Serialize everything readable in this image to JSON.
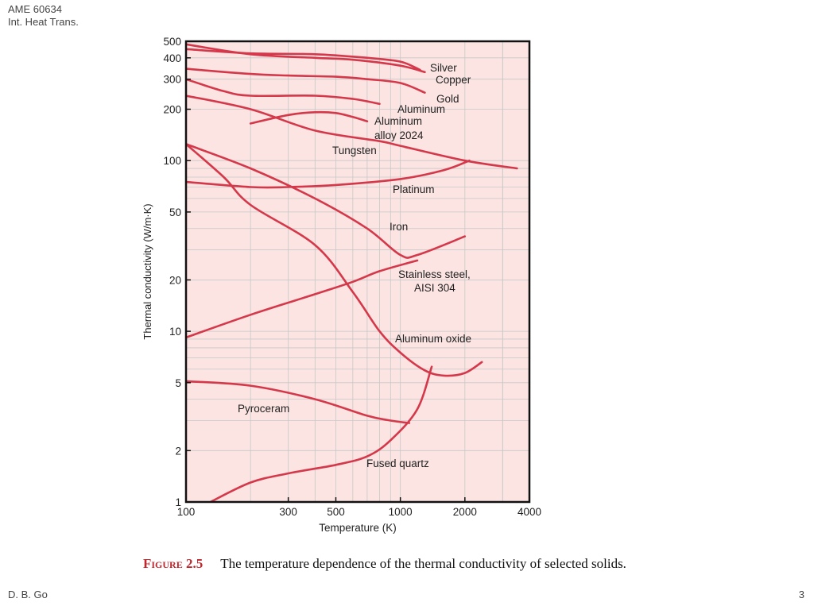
{
  "slide": {
    "header_line1": "AME 60634",
    "header_line2": "Int. Heat Trans.",
    "footer_left": "D. B. Go",
    "page_number": "3"
  },
  "caption": {
    "figure_label": "Figure 2.5",
    "text": "The temperature dependence of the thermal conductivity of selected solids."
  },
  "colors": {
    "plot_background": "#fbe4e1",
    "curve": "#d4384a",
    "grid": "#c8c8c8",
    "caption_label": "#c0262e"
  },
  "chart_data": {
    "type": "line",
    "title": "",
    "xlabel": "Temperature (K)",
    "ylabel": "Thermal conductivity (W/m·K)",
    "x_scale": "log",
    "y_scale": "log",
    "xlim": [
      100,
      4000
    ],
    "ylim": [
      1,
      500
    ],
    "x_ticks": [
      100,
      300,
      500,
      1000,
      2000,
      4000
    ],
    "x_tick_labels": [
      "100",
      "300",
      "500",
      "1000",
      "2000",
      "4000"
    ],
    "y_ticks": [
      1,
      2,
      5,
      10,
      20,
      50,
      100,
      200,
      300,
      400,
      500
    ],
    "y_tick_labels": [
      "1",
      "2",
      "5",
      "10",
      "20",
      "50",
      "100",
      "200",
      "300",
      "400",
      "500"
    ],
    "grid": true,
    "legend": "none",
    "series": [
      {
        "name": "Silver",
        "points": [
          [
            100,
            450
          ],
          [
            200,
            425
          ],
          [
            400,
            420
          ],
          [
            700,
            400
          ],
          [
            1000,
            380
          ],
          [
            1235,
            340
          ]
        ]
      },
      {
        "name": "Copper",
        "points": [
          [
            100,
            480
          ],
          [
            200,
            420
          ],
          [
            400,
            400
          ],
          [
            600,
            390
          ],
          [
            1000,
            360
          ],
          [
            1300,
            330
          ]
        ]
      },
      {
        "name": "Gold",
        "points": [
          [
            100,
            345
          ],
          [
            200,
            322
          ],
          [
            300,
            315
          ],
          [
            500,
            310
          ],
          [
            700,
            300
          ],
          [
            1000,
            285
          ],
          [
            1300,
            250
          ]
        ]
      },
      {
        "name": "Aluminum",
        "points": [
          [
            100,
            300
          ],
          [
            150,
            255
          ],
          [
            200,
            240
          ],
          [
            400,
            240
          ],
          [
            600,
            230
          ],
          [
            800,
            215
          ]
        ]
      },
      {
        "name": "Aluminum alloy 2024",
        "points": [
          [
            200,
            165
          ],
          [
            300,
            185
          ],
          [
            400,
            192
          ],
          [
            500,
            190
          ],
          [
            600,
            180
          ],
          [
            700,
            170
          ]
        ]
      },
      {
        "name": "Tungsten",
        "points": [
          [
            100,
            240
          ],
          [
            200,
            200
          ],
          [
            400,
            150
          ],
          [
            800,
            130
          ],
          [
            1000,
            122
          ],
          [
            2000,
            100
          ],
          [
            3500,
            90
          ]
        ]
      },
      {
        "name": "Platinum",
        "points": [
          [
            100,
            75
          ],
          [
            200,
            70
          ],
          [
            300,
            70
          ],
          [
            500,
            72
          ],
          [
            1000,
            78
          ],
          [
            1600,
            88
          ],
          [
            2100,
            100
          ]
        ]
      },
      {
        "name": "Iron",
        "points": [
          [
            100,
            125
          ],
          [
            200,
            90
          ],
          [
            400,
            60
          ],
          [
            700,
            40
          ],
          [
            1000,
            28
          ],
          [
            1200,
            28
          ],
          [
            2000,
            36
          ]
        ]
      },
      {
        "name": "Stainless steel, AISI 304",
        "points": [
          [
            100,
            9.2
          ],
          [
            200,
            12.5
          ],
          [
            400,
            16.5
          ],
          [
            600,
            19.5
          ],
          [
            800,
            22.5
          ],
          [
            1200,
            26
          ]
        ]
      },
      {
        "name": "Aluminum oxide",
        "points": [
          [
            100,
            125
          ],
          [
            150,
            80
          ],
          [
            200,
            55
          ],
          [
            400,
            32
          ],
          [
            600,
            17
          ],
          [
            800,
            10
          ],
          [
            1000,
            7.5
          ],
          [
            1300,
            5.9
          ],
          [
            1600,
            5.5
          ],
          [
            2000,
            5.7
          ],
          [
            2400,
            6.6
          ]
        ]
      },
      {
        "name": "Pyroceram",
        "points": [
          [
            100,
            5.1
          ],
          [
            200,
            4.8
          ],
          [
            400,
            4.0
          ],
          [
            700,
            3.2
          ],
          [
            900,
            3.0
          ],
          [
            1100,
            2.9
          ]
        ]
      },
      {
        "name": "Fused quartz",
        "points": [
          [
            130,
            1
          ],
          [
            200,
            1.3
          ],
          [
            300,
            1.47
          ],
          [
            500,
            1.65
          ],
          [
            700,
            1.85
          ],
          [
            900,
            2.3
          ],
          [
            1200,
            3.5
          ],
          [
            1400,
            6.2
          ]
        ]
      }
    ],
    "annotations": [
      {
        "text": "Silver",
        "series": "Silver"
      },
      {
        "text": "Copper",
        "series": "Copper"
      },
      {
        "text": "Gold",
        "series": "Gold"
      },
      {
        "text": "Aluminum",
        "series": "Aluminum"
      },
      {
        "text": "Aluminum",
        "series": "Aluminum alloy 2024"
      },
      {
        "text": "alloy 2024",
        "series": "Aluminum alloy 2024"
      },
      {
        "text": "Tungsten",
        "series": "Tungsten"
      },
      {
        "text": "Platinum",
        "series": "Platinum"
      },
      {
        "text": "Iron",
        "series": "Iron"
      },
      {
        "text": "Stainless steel,",
        "series": "Stainless steel, AISI 304"
      },
      {
        "text": "AISI 304",
        "series": "Stainless steel, AISI 304"
      },
      {
        "text": "Aluminum oxide",
        "series": "Aluminum oxide"
      },
      {
        "text": "Pyroceram",
        "series": "Pyroceram"
      },
      {
        "text": "Fused quartz",
        "series": "Fused quartz"
      }
    ]
  }
}
